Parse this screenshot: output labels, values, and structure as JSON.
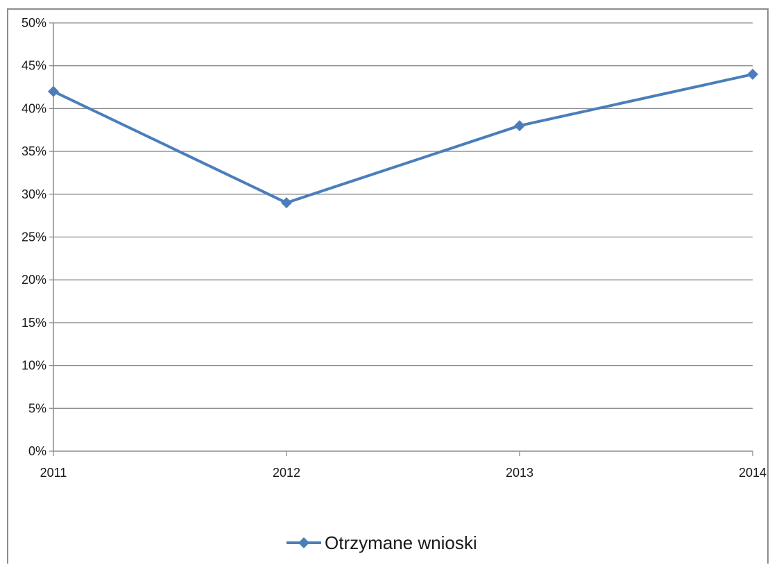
{
  "chart_data": {
    "type": "line",
    "categories": [
      "2011",
      "2012",
      "2013",
      "2014"
    ],
    "series": [
      {
        "name": "Otrzymane wnioski",
        "values": [
          0.42,
          0.29,
          0.38,
          0.44
        ],
        "color": "#4a7ebb",
        "marker": "diamond"
      }
    ],
    "ylim": [
      0,
      0.5
    ],
    "y_ticks": [
      0,
      0.05,
      0.1,
      0.15,
      0.2,
      0.25,
      0.3,
      0.35,
      0.4,
      0.45,
      0.5
    ],
    "y_tick_labels": [
      "0%",
      "5%",
      "10%",
      "15%",
      "20%",
      "25%",
      "30%",
      "35%",
      "40%",
      "45%",
      "50%"
    ],
    "grid": true,
    "legend_position": "bottom",
    "title": "",
    "xlabel": "",
    "ylabel": ""
  }
}
